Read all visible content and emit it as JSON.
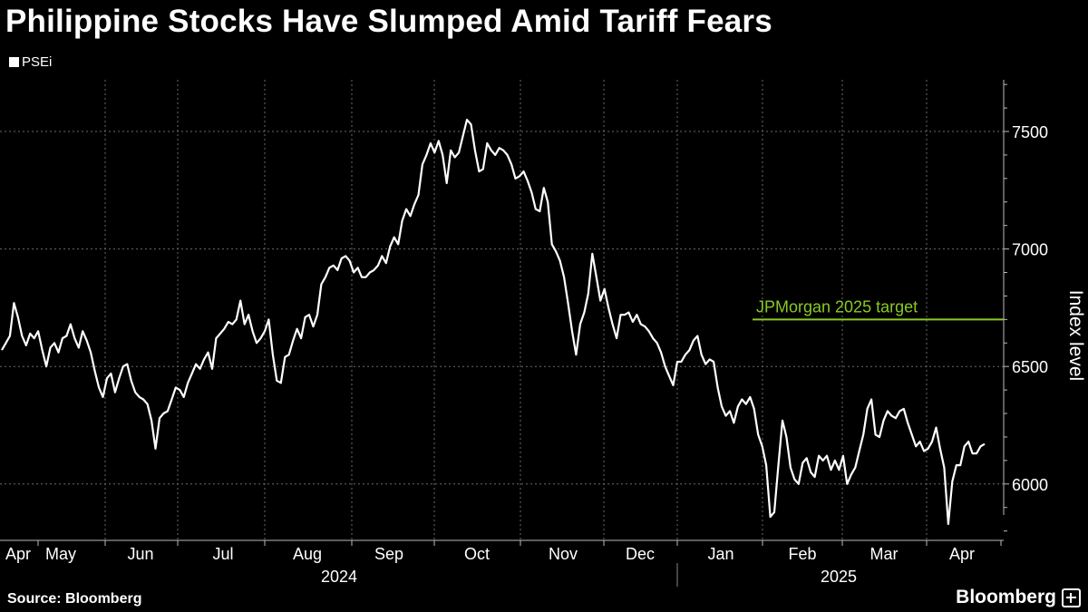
{
  "title": "Philippine Stocks Have Slumped Amid Tariff Fears",
  "source": "Source: Bloomberg",
  "brand": "Bloomberg",
  "chart_data": {
    "type": "line",
    "series": [
      {
        "name": "PSEi",
        "color": "#ffffff",
        "values": [
          6570,
          6600,
          6630,
          6770,
          6710,
          6630,
          6590,
          6640,
          6620,
          6650,
          6570,
          6500,
          6580,
          6600,
          6560,
          6620,
          6630,
          6680,
          6620,
          6580,
          6650,
          6610,
          6560,
          6480,
          6410,
          6370,
          6450,
          6470,
          6390,
          6450,
          6500,
          6510,
          6440,
          6390,
          6370,
          6360,
          6340,
          6270,
          6150,
          6280,
          6300,
          6310,
          6360,
          6410,
          6400,
          6370,
          6430,
          6470,
          6510,
          6490,
          6530,
          6560,
          6490,
          6620,
          6640,
          6660,
          6690,
          6680,
          6700,
          6780,
          6680,
          6720,
          6650,
          6600,
          6620,
          6650,
          6700,
          6550,
          6440,
          6430,
          6540,
          6550,
          6610,
          6660,
          6620,
          6710,
          6720,
          6670,
          6720,
          6850,
          6880,
          6920,
          6930,
          6910,
          6960,
          6970,
          6950,
          6900,
          6920,
          6880,
          6880,
          6900,
          6910,
          6930,
          6970,
          6940,
          7010,
          7050,
          7020,
          7120,
          7170,
          7140,
          7190,
          7230,
          7360,
          7400,
          7450,
          7410,
          7460,
          7400,
          7280,
          7420,
          7390,
          7410,
          7480,
          7550,
          7530,
          7420,
          7330,
          7340,
          7450,
          7420,
          7400,
          7430,
          7420,
          7400,
          7360,
          7300,
          7310,
          7330,
          7290,
          7240,
          7170,
          7160,
          7260,
          7200,
          7020,
          6990,
          6950,
          6880,
          6770,
          6650,
          6550,
          6680,
          6730,
          6810,
          6980,
          6880,
          6780,
          6830,
          6750,
          6680,
          6620,
          6720,
          6720,
          6730,
          6690,
          6720,
          6680,
          6670,
          6650,
          6620,
          6600,
          6560,
          6500,
          6460,
          6420,
          6520,
          6520,
          6550,
          6570,
          6610,
          6630,
          6550,
          6510,
          6530,
          6520,
          6410,
          6330,
          6290,
          6310,
          6260,
          6330,
          6360,
          6340,
          6370,
          6320,
          6210,
          6160,
          6080,
          5860,
          5880,
          6080,
          6270,
          6200,
          6070,
          6020,
          6000,
          6090,
          6110,
          6050,
          6030,
          6120,
          6100,
          6120,
          6060,
          6100,
          6060,
          6120,
          6000,
          6040,
          6070,
          6140,
          6210,
          6320,
          6360,
          6210,
          6200,
          6270,
          6310,
          6290,
          6280,
          6310,
          6320,
          6260,
          6210,
          6160,
          6180,
          6140,
          6150,
          6180,
          6240,
          6150,
          6070,
          5830,
          6010,
          6080,
          6080,
          6160,
          6180,
          6130,
          6130,
          6160,
          6170
        ]
      }
    ],
    "reference_line": {
      "label": "JPMorgan 2025 target",
      "value": 6700,
      "start_month": "Jan 2025",
      "color": "#8ac926"
    },
    "y_axis": {
      "title": "Index level",
      "ticks": [
        6000,
        6500,
        7000,
        7500
      ],
      "range": [
        5760,
        7720
      ],
      "position": "right"
    },
    "x_axis": {
      "months": [
        "Apr",
        "May",
        "Jun",
        "Jul",
        "Aug",
        "Sep",
        "Oct",
        "Nov",
        "Dec",
        "Jan",
        "Feb",
        "Mar",
        "Apr"
      ],
      "years": [
        "2024",
        "2025"
      ]
    },
    "grid": true,
    "legend_position": "top-left"
  }
}
